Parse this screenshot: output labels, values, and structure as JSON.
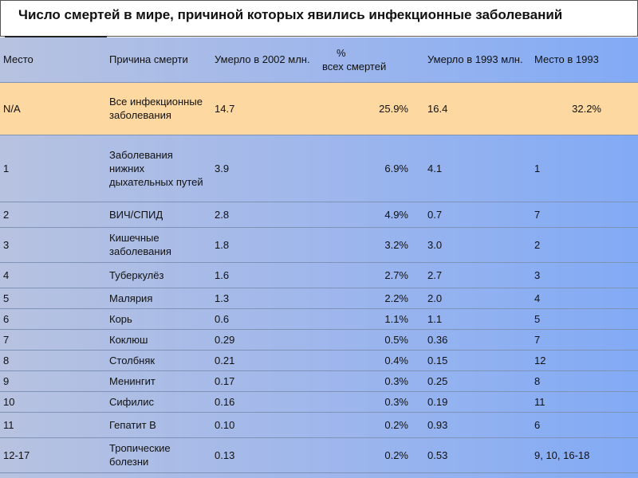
{
  "title": "Число смертей в мире, причиной которых явились инфекционные заболеваний",
  "table": {
    "headers": {
      "place": "Место",
      "cause": "Причина смерти",
      "died2002": "Умерло в 2002 млн.",
      "percent_symbol": "%",
      "percent_label": "всех смертей",
      "died1993": "Умерло в 1993 млн.",
      "place1993": "Место в 1993"
    },
    "rows": [
      {
        "place": "N/A",
        "cause": "Все инфекционные заболевания",
        "died2002": "14.7",
        "percent": "25.9%",
        "died1993": "16.4",
        "place1993": "32.2%"
      },
      {
        "place": "1",
        "cause": "Заболевания нижних дыхательных путей",
        "died2002": "3.9",
        "percent": "6.9%",
        "died1993": "4.1",
        "place1993": "1"
      },
      {
        "place": "2",
        "cause": "ВИЧ/СПИД",
        "died2002": "2.8",
        "percent": "4.9%",
        "died1993": "0.7",
        "place1993": "7"
      },
      {
        "place": "3",
        "cause": "Кишечные заболевания",
        "died2002": "1.8",
        "percent": "3.2%",
        "died1993": "3.0",
        "place1993": "2"
      },
      {
        "place": "4",
        "cause": "Туберкулёз",
        "died2002": "1.6",
        "percent": "2.7%",
        "died1993": "2.7",
        "place1993": "3"
      },
      {
        "place": "5",
        "cause": "Малярия",
        "died2002": "1.3",
        "percent": "2.2%",
        "died1993": "2.0",
        "place1993": "4"
      },
      {
        "place": "6",
        "cause": "Корь",
        "died2002": "0.6",
        "percent": "1.1%",
        "died1993": "1.1",
        "place1993": "5"
      },
      {
        "place": "7",
        "cause": "Коклюш",
        "died2002": "0.29",
        "percent": "0.5%",
        "died1993": "0.36",
        "place1993": "7"
      },
      {
        "place": "8",
        "cause": "Столбняк",
        "died2002": "0.21",
        "percent": "0.4%",
        "died1993": "0.15",
        "place1993": "12"
      },
      {
        "place": "9",
        "cause": "Менингит",
        "died2002": "0.17",
        "percent": "0.3%",
        "died1993": "0.25",
        "place1993": "8"
      },
      {
        "place": "10",
        "cause": "Сифилис",
        "died2002": "0.16",
        "percent": "0.3%",
        "died1993": "0.19",
        "place1993": "11"
      },
      {
        "place": "11",
        "cause": "Гепатит В",
        "died2002": "0.10",
        "percent": "0.2%",
        "died1993": "0.93",
        "place1993": "6"
      },
      {
        "place": "12-17",
        "cause": "Тропические болезни",
        "died2002": "0.13",
        "percent": "0.2%",
        "died1993": "0.53",
        "place1993": "9, 10, 16-18"
      }
    ]
  },
  "colors": {
    "highlight_row": "#fdd8a0",
    "table_bg_left": "#b7c2e0",
    "table_bg_right": "#82aaf5"
  }
}
